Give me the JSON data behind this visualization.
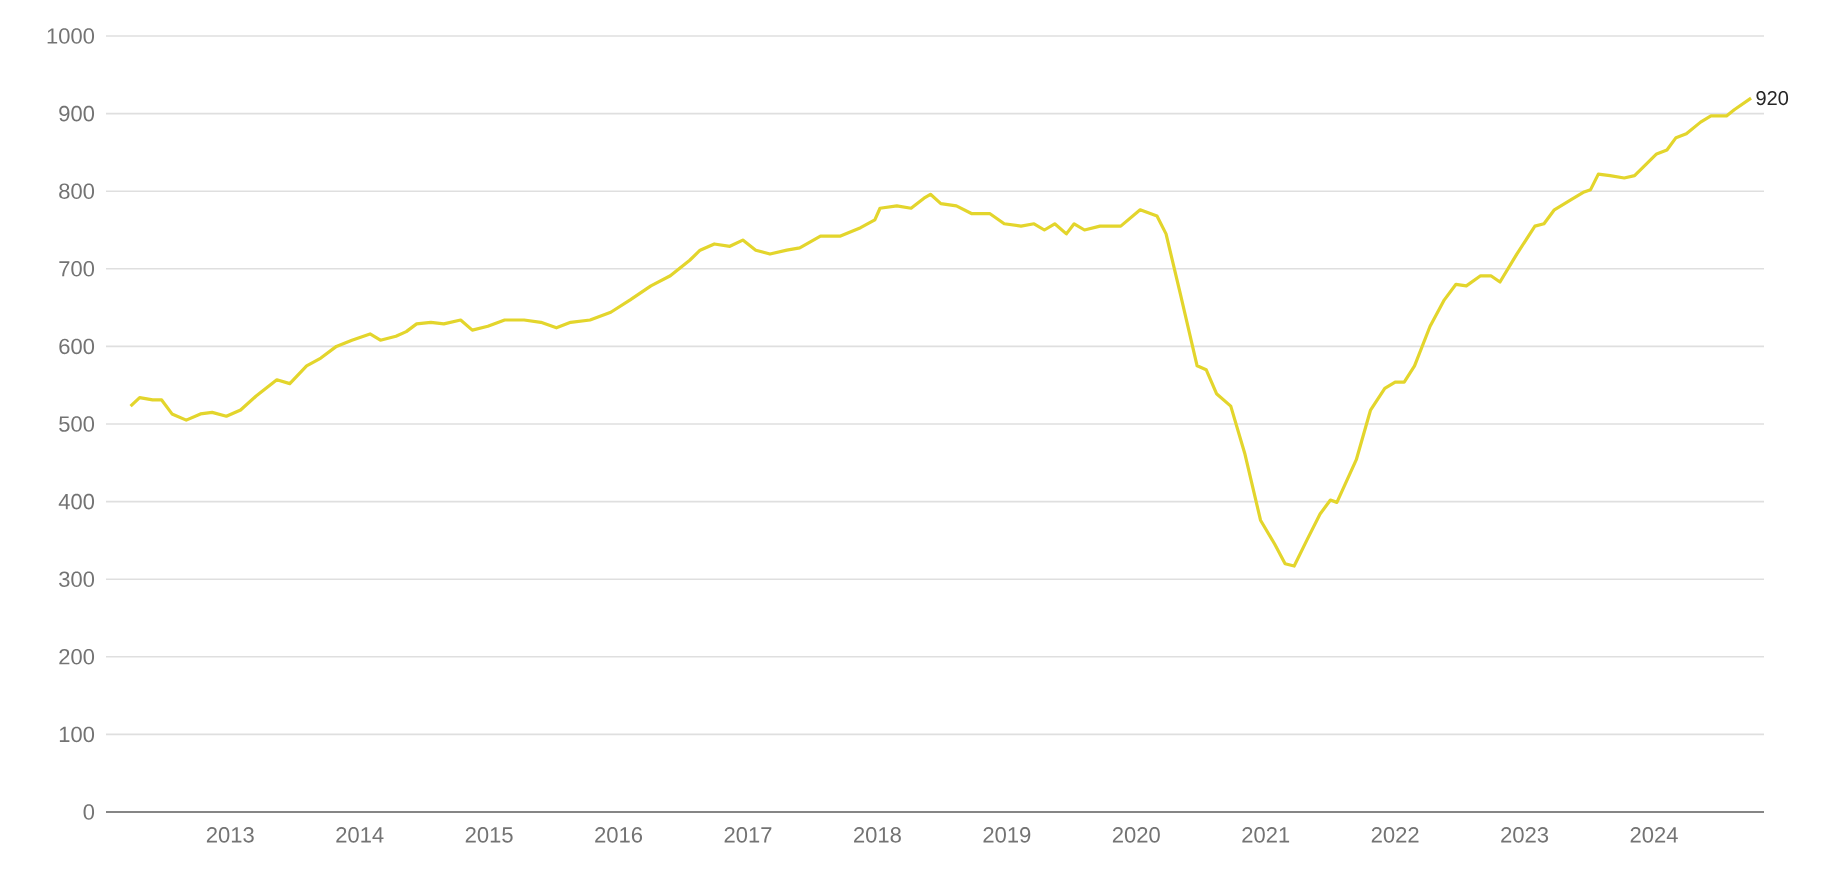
{
  "chart_data": {
    "type": "line",
    "color": "#e3d52c",
    "x": [
      2012.23,
      2012.3,
      2012.4,
      2012.47,
      2012.55,
      2012.66,
      2012.77,
      2012.86,
      2012.97,
      2013.08,
      2013.2,
      2013.36,
      2013.46,
      2013.59,
      2013.7,
      2013.82,
      2013.94,
      2014.08,
      2014.16,
      2014.28,
      2014.36,
      2014.44,
      2014.55,
      2014.65,
      2014.78,
      2014.87,
      2014.99,
      2015.12,
      2015.27,
      2015.4,
      2015.52,
      2015.63,
      2015.78,
      2015.94,
      2016.09,
      2016.25,
      2016.4,
      2016.55,
      2016.63,
      2016.74,
      2016.86,
      2016.96,
      2017.06,
      2017.17,
      2017.3,
      2017.4,
      2017.56,
      2017.71,
      2017.87,
      2017.98,
      2018.02,
      2018.15,
      2018.26,
      2018.36,
      2018.41,
      2018.49,
      2018.61,
      2018.73,
      2018.87,
      2018.98,
      2019.11,
      2019.21,
      2019.29,
      2019.37,
      2019.46,
      2019.52,
      2019.6,
      2019.72,
      2019.88,
      2020.03,
      2020.16,
      2020.23,
      2020.34,
      2020.47,
      2020.54,
      2020.62,
      2020.73,
      2020.84,
      2020.96,
      2021.07,
      2021.15,
      2021.22,
      2021.32,
      2021.42,
      2021.5,
      2021.55,
      2021.7,
      2021.81,
      2021.92,
      2022.0,
      2022.07,
      2022.15,
      2022.27,
      2022.38,
      2022.47,
      2022.55,
      2022.66,
      2022.74,
      2022.81,
      2022.94,
      2023.08,
      2023.15,
      2023.23,
      2023.36,
      2023.46,
      2023.51,
      2023.57,
      2023.66,
      2023.77,
      2023.85,
      2023.94,
      2024.02,
      2024.1,
      2024.17,
      2024.25,
      2024.36,
      2024.44,
      2024.56,
      2024.62,
      2024.75
    ],
    "values": [
      523,
      534,
      531,
      531,
      513,
      505,
      513,
      515,
      510,
      518,
      536,
      557,
      552,
      575,
      585,
      600,
      608,
      616,
      608,
      613,
      619,
      629,
      631,
      629,
      634,
      621,
      626,
      634,
      634,
      631,
      624,
      631,
      634,
      644,
      660,
      678,
      691,
      711,
      724,
      732,
      729,
      737,
      724,
      719,
      724,
      727,
      742,
      742,
      753,
      763,
      778,
      781,
      778,
      791,
      796,
      784,
      781,
      771,
      771,
      758,
      755,
      758,
      750,
      758,
      745,
      758,
      750,
      755,
      755,
      776,
      768,
      745,
      668,
      575,
      570,
      539,
      523,
      461,
      376,
      345,
      320,
      317,
      351,
      384,
      402,
      399,
      454,
      518,
      546,
      554,
      554,
      575,
      626,
      660,
      680,
      678,
      691,
      691,
      683,
      719,
      755,
      758,
      776,
      789,
      799,
      802,
      822,
      820,
      817,
      820,
      835,
      848,
      853,
      869,
      874,
      889,
      897,
      897,
      905,
      920
    ],
    "xlim": [
      2012.04,
      2024.85
    ],
    "xticks": [
      2013,
      2014,
      2015,
      2016,
      2017,
      2018,
      2019,
      2020,
      2021,
      2022,
      2023,
      2024
    ],
    "ylim": [
      0,
      1000
    ],
    "yticks": [
      0,
      100,
      200,
      300,
      400,
      500,
      600,
      700,
      800,
      900,
      1000
    ],
    "grid": "y",
    "annotations": [
      {
        "text": "920",
        "x": 2024.75,
        "y": 920
      }
    ]
  }
}
